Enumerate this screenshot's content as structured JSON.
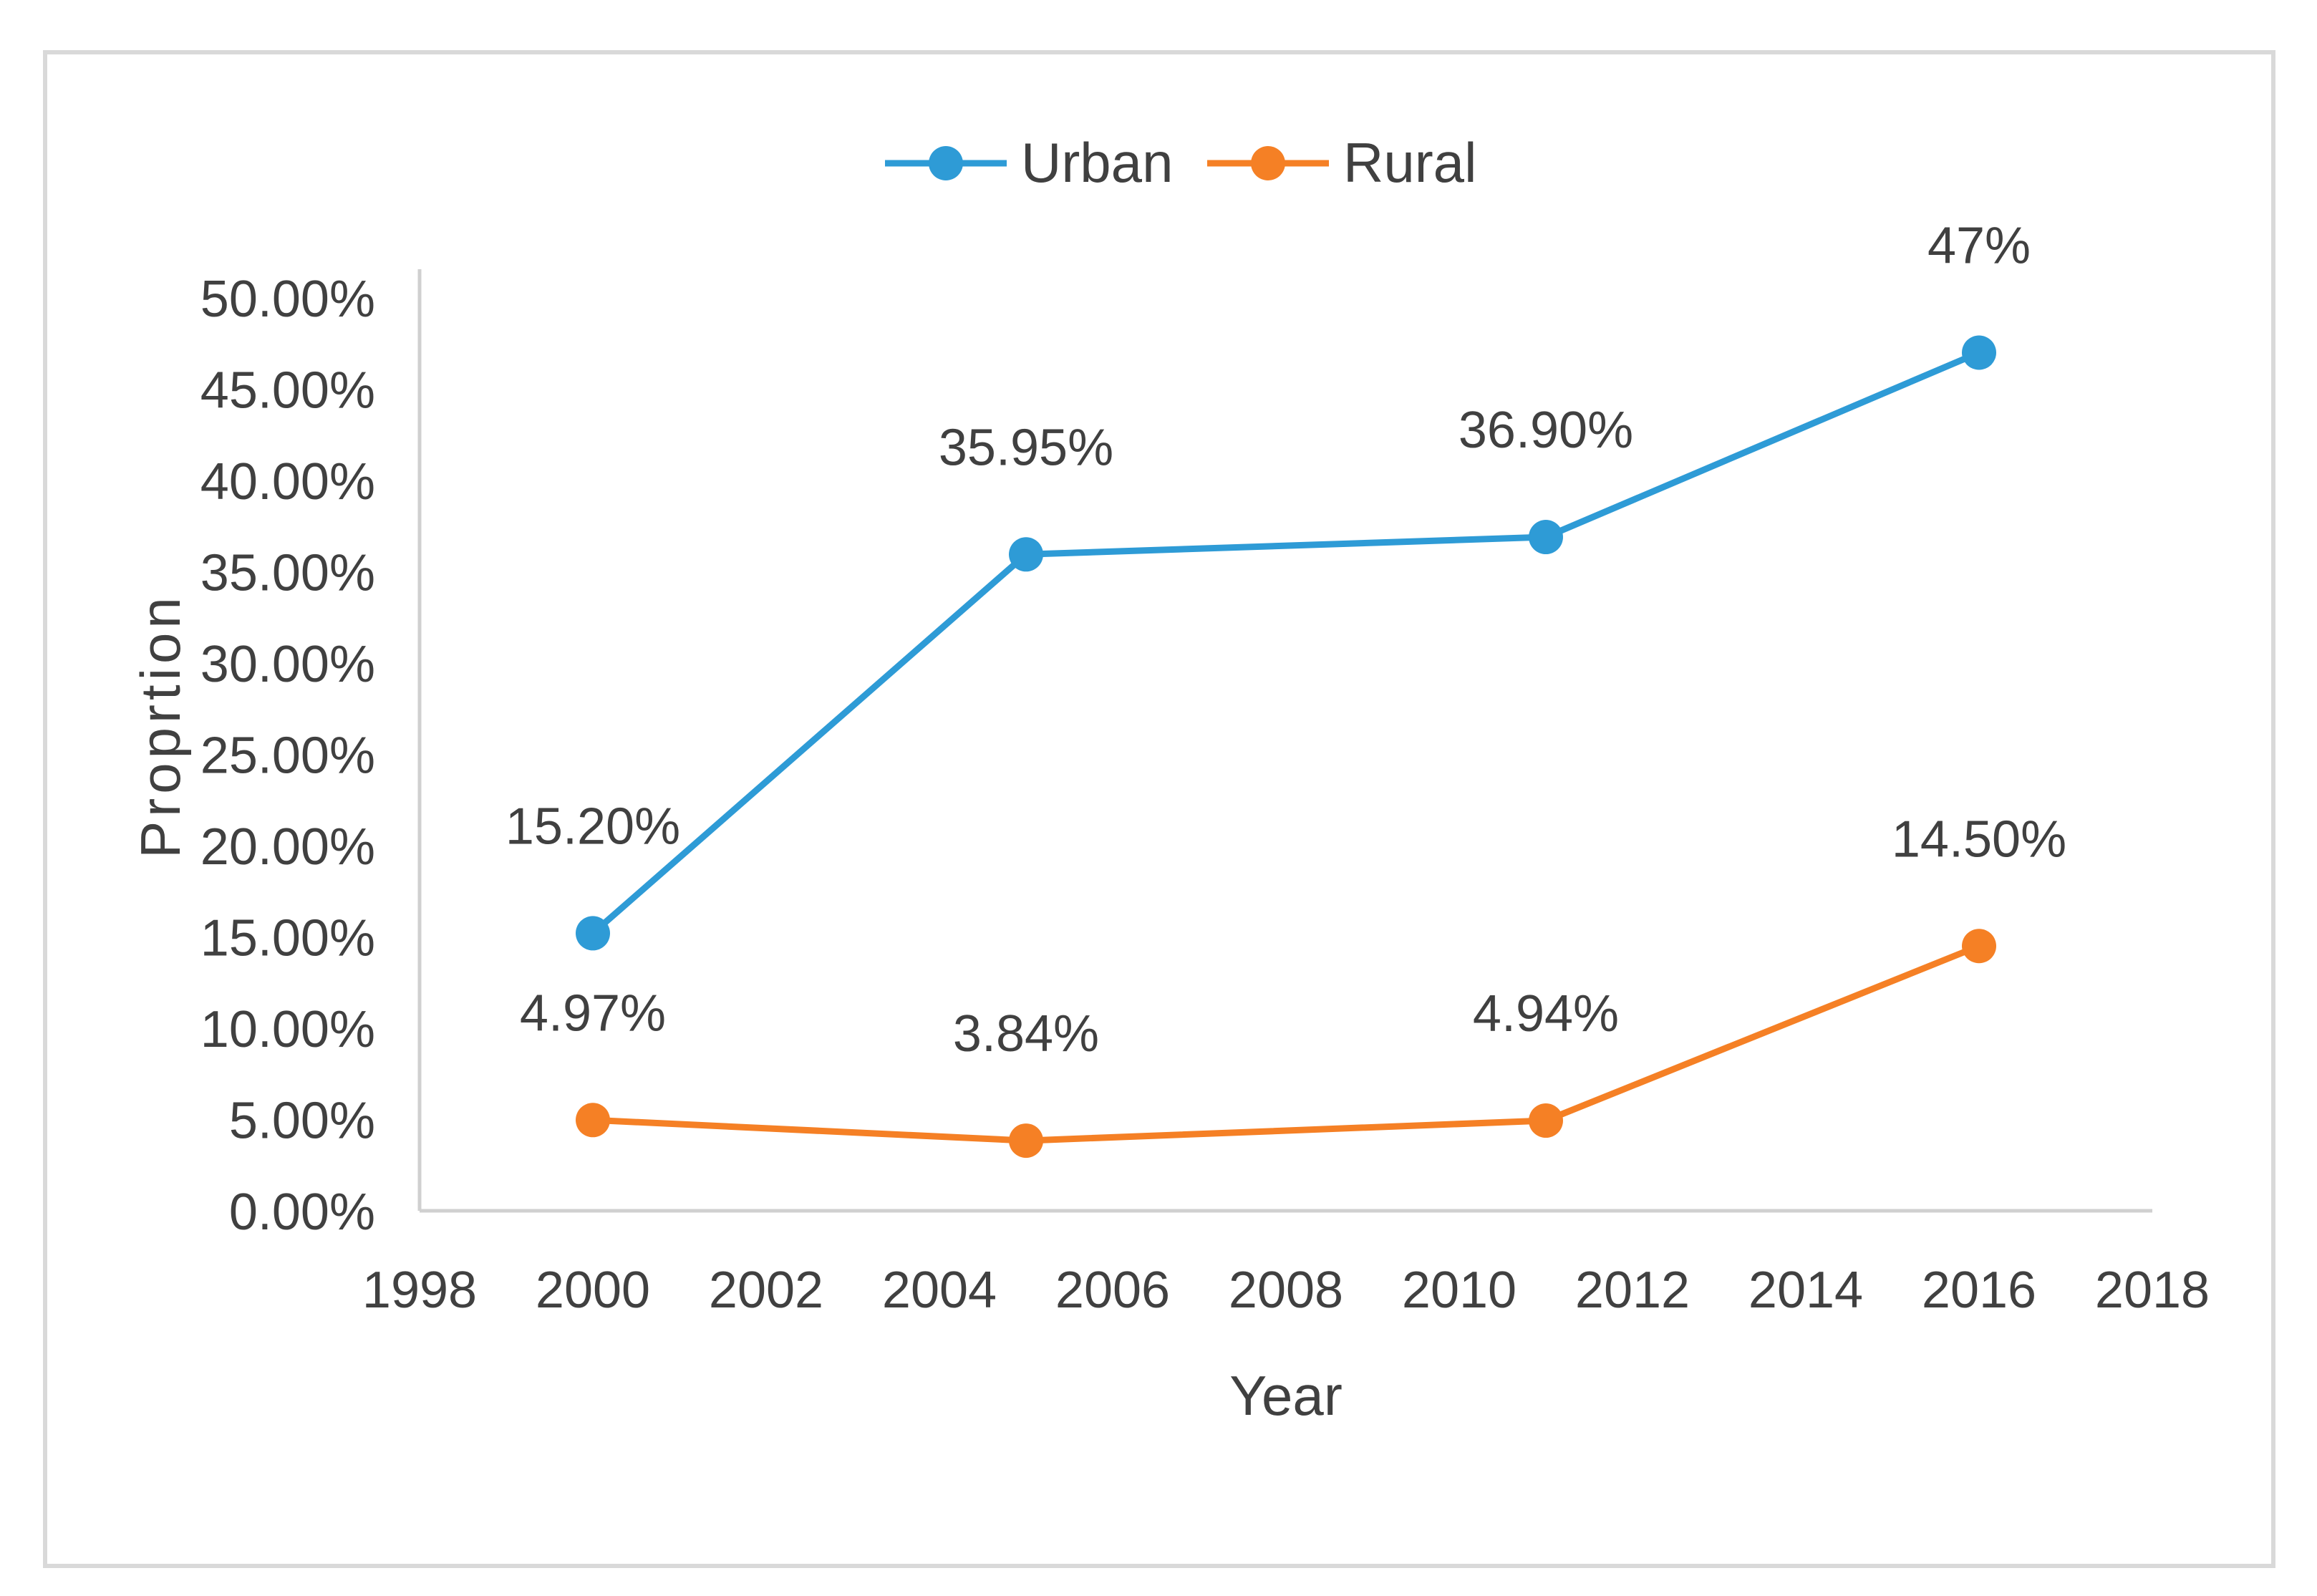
{
  "chart_data": {
    "type": "line",
    "title": "",
    "xlabel": "Year",
    "ylabel": "Proprtion",
    "xlim": [
      1998,
      2018
    ],
    "ylim": [
      0,
      0.5
    ],
    "x_ticks": [
      1998,
      2000,
      2002,
      2004,
      2006,
      2008,
      2010,
      2012,
      2014,
      2016,
      2018
    ],
    "x_tick_labels": [
      "1998",
      "2000",
      "2002",
      "2004",
      "2006",
      "2008",
      "2010",
      "2012",
      "2014",
      "2016",
      "2018"
    ],
    "y_ticks": [
      0,
      0.05,
      0.1,
      0.15,
      0.2,
      0.25,
      0.3,
      0.35,
      0.4,
      0.45,
      0.5
    ],
    "y_tick_labels": [
      "0.00%",
      "5.00%",
      "10.00%",
      "15.00%",
      "20.00%",
      "25.00%",
      "30.00%",
      "35.00%",
      "40.00%",
      "45.00%",
      "50.00%"
    ],
    "grid": false,
    "legend": "top-center",
    "series": [
      {
        "name": "Urban",
        "color": "#2e9bd6",
        "x": [
          2000,
          2005,
          2011,
          2016
        ],
        "values": [
          0.152,
          0.3595,
          0.369,
          0.47
        ],
        "labels": [
          "15.20%",
          "35.95%",
          "36.90%",
          "47%"
        ]
      },
      {
        "name": "Rural",
        "color": "#f58025",
        "x": [
          2000,
          2005,
          2011,
          2016
        ],
        "values": [
          0.0497,
          0.0384,
          0.0494,
          0.145
        ],
        "labels": [
          "4.97%",
          "3.84%",
          "4.94%",
          "14.50%"
        ]
      }
    ]
  }
}
